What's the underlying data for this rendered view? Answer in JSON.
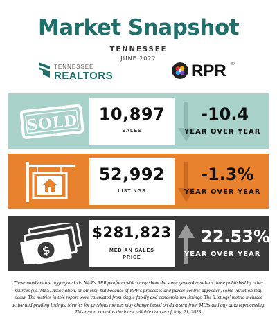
{
  "header": {
    "title": "Market Snapshot",
    "subtitle": "TENNESSEE",
    "date": "JUNE 2022"
  },
  "logos": {
    "left_line1": "TENNESSEE",
    "left_line2": "REALTORS",
    "left_reg": "®",
    "right_name": "RPR",
    "right_reg": "®"
  },
  "metrics": [
    {
      "icon": "sold-stamp-icon",
      "value": "10,897",
      "label": "SALES",
      "change": "-10.4",
      "change_label": "YEAR OVER YEAR",
      "direction": "down",
      "band_color": "#a9d2cb"
    },
    {
      "icon": "house-sign-icon",
      "value": "52,992",
      "label": "LISTINGS",
      "change": "-1.3%",
      "change_label": "YEAR OVER YEAR",
      "direction": "down",
      "band_color": "#e9822f"
    },
    {
      "icon": "money-bills-icon",
      "value": "$281,823",
      "label": "MEDIAN SALES\nPRICE",
      "label_line1": "MEDIAN SALES",
      "label_line2": "PRICE",
      "change": "22.53%",
      "change_label": "YEAR OVER YEAR",
      "direction": "up",
      "band_color": "#3a3a3a"
    }
  ],
  "footer": {
    "text": "These numbers are aggregated via NAR's RPR platform which may show the same general trends as those published by other sources (i.e. MLS, Association, or others), but because of RPR's processes and parcel-centric approach, some variation may occur. The metrics in this report were calculated from single-family and condominium listings. The 'Listings' metric includes active and pending listings. Metrics for previous months may change based on data sent from MLSs and any data reprocessing. This report contains the latest reliable data as of July, 21, 2023."
  }
}
